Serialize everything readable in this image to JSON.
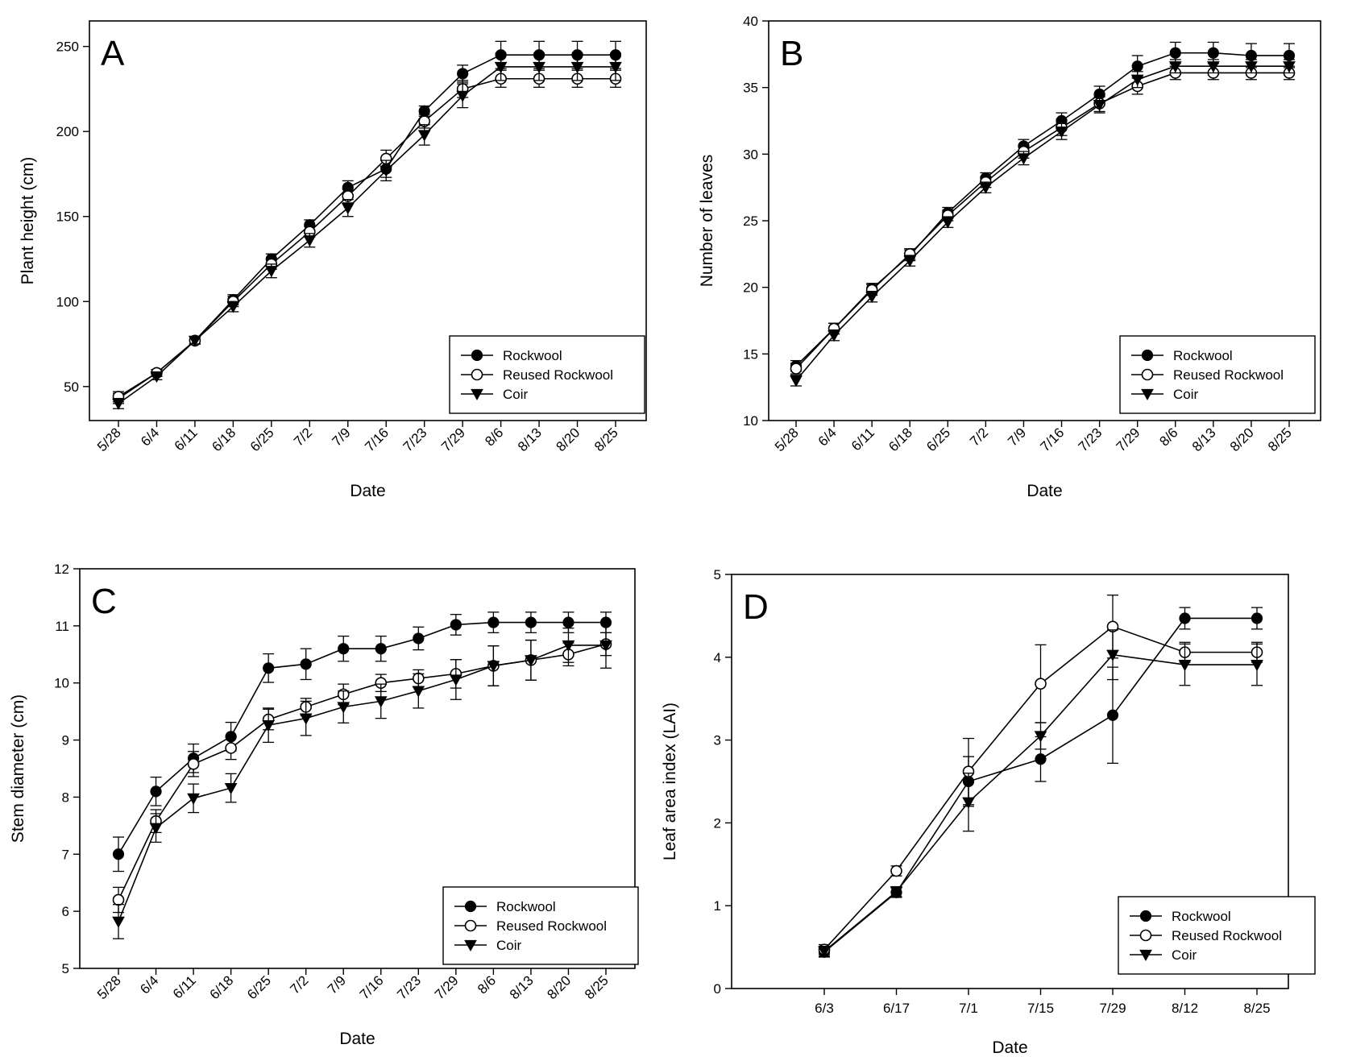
{
  "chart_data": [
    {
      "type": "line",
      "panel_label": "A",
      "title": "",
      "xlabel": "Date",
      "ylabel": "Plant height (cm)",
      "categories": [
        "5/28",
        "6/4",
        "6/11",
        "6/18",
        "6/25",
        "7/2",
        "7/9",
        "7/16",
        "7/23",
        "7/29",
        "8/6",
        "8/13",
        "8/20",
        "8/25"
      ],
      "ylim": [
        30,
        265
      ],
      "yticks": [
        50,
        100,
        150,
        200,
        250
      ],
      "legend_position": "bottom-right",
      "series": [
        {
          "name": "Rockwool",
          "marker": "filled-circle",
          "values": [
            43,
            58,
            77,
            101,
            125,
            145,
            167,
            178,
            212,
            234,
            245,
            245,
            245,
            245
          ],
          "errors": [
            3,
            2,
            2,
            3,
            3,
            3,
            4,
            5,
            3,
            5,
            8,
            8,
            8,
            8
          ]
        },
        {
          "name": "Reused Rockwool",
          "marker": "open-circle",
          "values": [
            44,
            58,
            77,
            100,
            122,
            141,
            162,
            184,
            206,
            225,
            231,
            231,
            231,
            231
          ],
          "errors": [
            3,
            2,
            2,
            3,
            3,
            3,
            4,
            5,
            4,
            5,
            5,
            5,
            5,
            5
          ]
        },
        {
          "name": "Coir",
          "marker": "filled-triangle-down",
          "values": [
            40,
            56,
            77,
            97,
            118,
            136,
            155,
            177,
            198,
            221,
            238,
            238,
            238,
            238
          ],
          "errors": [
            3,
            2,
            2,
            3,
            4,
            4,
            5,
            6,
            6,
            7,
            8,
            8,
            8,
            8
          ]
        }
      ]
    },
    {
      "type": "line",
      "panel_label": "B",
      "title": "",
      "xlabel": "Date",
      "ylabel": "Number of leaves",
      "categories": [
        "5/28",
        "6/4",
        "6/11",
        "6/18",
        "6/25",
        "7/2",
        "7/9",
        "7/16",
        "7/23",
        "7/29",
        "8/6",
        "8/13",
        "8/20",
        "8/25"
      ],
      "ylim": [
        10,
        40
      ],
      "yticks": [
        10,
        15,
        20,
        25,
        30,
        35,
        40
      ],
      "legend_position": "bottom-right",
      "series": [
        {
          "name": "Rockwool",
          "marker": "filled-circle",
          "values": [
            14.1,
            16.9,
            19.9,
            22.4,
            25.6,
            28.2,
            30.6,
            32.5,
            34.5,
            36.6,
            37.6,
            37.6,
            37.4,
            37.4
          ],
          "errors": [
            0.4,
            0.4,
            0.4,
            0.4,
            0.4,
            0.4,
            0.5,
            0.6,
            0.6,
            0.8,
            0.8,
            0.8,
            0.9,
            0.9
          ]
        },
        {
          "name": "Reused Rockwool",
          "marker": "open-circle",
          "values": [
            13.9,
            16.9,
            19.8,
            22.5,
            25.4,
            27.9,
            30.2,
            32.0,
            33.8,
            35.1,
            36.1,
            36.1,
            36.1,
            36.1
          ],
          "errors": [
            0.4,
            0.4,
            0.4,
            0.4,
            0.4,
            0.4,
            0.5,
            0.6,
            0.6,
            0.6,
            0.5,
            0.5,
            0.5,
            0.5
          ]
        },
        {
          "name": "Coir",
          "marker": "filled-triangle-down",
          "values": [
            13.0,
            16.4,
            19.3,
            22.0,
            24.9,
            27.5,
            29.7,
            31.7,
            33.7,
            35.6,
            36.6,
            36.6,
            36.6,
            36.6
          ],
          "errors": [
            0.4,
            0.4,
            0.4,
            0.4,
            0.4,
            0.4,
            0.5,
            0.6,
            0.6,
            0.6,
            0.5,
            0.5,
            0.5,
            0.5
          ]
        }
      ]
    },
    {
      "type": "line",
      "panel_label": "C",
      "title": "",
      "xlabel": "Date",
      "ylabel": "Stem diameter (cm)",
      "categories": [
        "5/28",
        "6/4",
        "6/11",
        "6/18",
        "6/25",
        "7/2",
        "7/9",
        "7/16",
        "7/23",
        "7/29",
        "8/6",
        "8/13",
        "8/20",
        "8/25"
      ],
      "ylim": [
        5,
        12
      ],
      "yticks": [
        5,
        6,
        7,
        8,
        9,
        10,
        11,
        12
      ],
      "legend_position": "bottom-right",
      "series": [
        {
          "name": "Rockwool",
          "marker": "filled-circle",
          "values": [
            7.0,
            8.1,
            8.68,
            9.06,
            10.26,
            10.33,
            10.6,
            10.6,
            10.78,
            11.02,
            11.06,
            11.06,
            11.06,
            11.06
          ],
          "errors": [
            0.3,
            0.25,
            0.25,
            0.25,
            0.25,
            0.27,
            0.22,
            0.22,
            0.2,
            0.18,
            0.18,
            0.18,
            0.18,
            0.18
          ]
        },
        {
          "name": "Reused Rockwool",
          "marker": "open-circle",
          "values": [
            6.2,
            7.58,
            8.58,
            8.86,
            9.36,
            9.58,
            9.8,
            10.0,
            10.08,
            10.16,
            10.3,
            10.4,
            10.5,
            10.68
          ],
          "errors": [
            0.22,
            0.2,
            0.22,
            0.2,
            0.18,
            0.15,
            0.18,
            0.15,
            0.15,
            0.25,
            0.35,
            0.35,
            0.2,
            0.2
          ]
        },
        {
          "name": "Coir",
          "marker": "filled-triangle-down",
          "values": [
            5.82,
            7.46,
            7.98,
            8.16,
            9.26,
            9.38,
            9.58,
            9.68,
            9.86,
            10.06,
            10.3,
            10.4,
            10.66,
            10.66
          ],
          "errors": [
            0.3,
            0.25,
            0.25,
            0.25,
            0.3,
            0.3,
            0.28,
            0.3,
            0.3,
            0.35,
            0.35,
            0.35,
            0.3,
            0.4
          ]
        }
      ]
    },
    {
      "type": "line",
      "panel_label": "D",
      "title": "",
      "xlabel": "Date",
      "ylabel": "Leaf area index (LAI)",
      "categories": [
        "6/3",
        "6/17",
        "7/1",
        "7/15",
        "7/29",
        "8/12",
        "8/25"
      ],
      "ylim": [
        0,
        5
      ],
      "yticks": [
        0,
        1,
        2,
        3,
        4,
        5
      ],
      "legend_position": "bottom-right",
      "series": [
        {
          "name": "Rockwool",
          "marker": "filled-circle",
          "values": [
            0.44,
            1.16,
            2.5,
            2.77,
            3.3,
            4.47,
            4.47
          ],
          "errors": [
            0.06,
            0.06,
            0.3,
            0.27,
            0.58,
            0.13,
            0.13
          ]
        },
        {
          "name": "Reused Rockwool",
          "marker": "open-circle",
          "values": [
            0.47,
            1.42,
            2.62,
            3.68,
            4.37,
            4.06,
            4.06
          ],
          "errors": [
            0.06,
            0.06,
            0.4,
            0.47,
            0.38,
            0.12,
            0.12
          ]
        },
        {
          "name": "Coir",
          "marker": "filled-triangle-down",
          "values": [
            0.45,
            1.17,
            2.25,
            3.05,
            4.03,
            3.91,
            3.91
          ],
          "errors": [
            0.06,
            0.06,
            0.35,
            0.16,
            0.3,
            0.25,
            0.25
          ]
        }
      ]
    }
  ]
}
